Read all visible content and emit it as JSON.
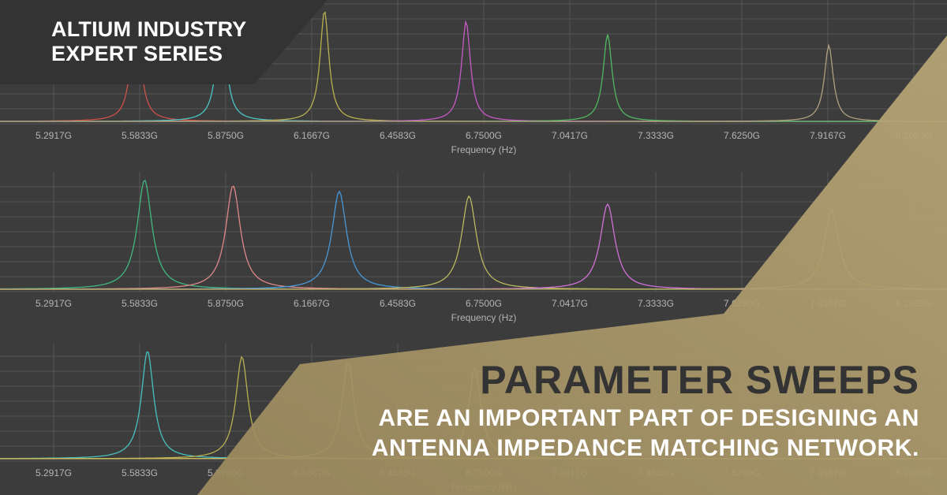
{
  "badge": {
    "line1": "ALTIUM INDUSTRY",
    "line2": "EXPERT SERIES",
    "color": "#333333"
  },
  "headline": {
    "title": "PARAMETER SWEEPS",
    "subtitle_line1": "ARE AN IMPORTANT PART OF DESIGNING AN",
    "subtitle_line2": "ANTENNA IMPEDANCE MATCHING NETWORK."
  },
  "accent_color": "#a8966a",
  "chart_data": [
    {
      "type": "line",
      "xlabel": "Frequency (Hz)",
      "ticks": [
        "5.2917G",
        "5.5833G",
        "5.8750G",
        "6.1667G",
        "6.4583G",
        "6.7500G",
        "7.0417G",
        "7.3333G",
        "7.6250G",
        "7.9167G",
        "8.2083G"
      ],
      "grid": true,
      "peaks": [
        {
          "freq_ghz": 5.57,
          "level": 1.0,
          "color": "#d0504a"
        },
        {
          "freq_ghz": 5.86,
          "level": 1.0,
          "color": "#4cc4c4"
        },
        {
          "freq_ghz": 6.21,
          "level": 0.93,
          "color": "#b8b050"
        },
        {
          "freq_ghz": 6.69,
          "level": 0.84,
          "color": "#c858c8"
        },
        {
          "freq_ghz": 7.17,
          "level": 0.73,
          "color": "#50b860"
        },
        {
          "freq_ghz": 7.92,
          "level": 0.64,
          "color": "#b0a080"
        }
      ]
    },
    {
      "type": "line",
      "xlabel": "Frequency (Hz)",
      "ticks": [
        "5.2917G",
        "5.5833G",
        "5.8750G",
        "6.1667G",
        "6.4583G",
        "6.7500G",
        "7.0417G",
        "7.3333G",
        "7.6250G",
        "7.9167G",
        "8.2083G"
      ],
      "grid": true,
      "peaks": [
        {
          "freq_ghz": 5.6,
          "level": 0.95,
          "color": "#40b880"
        },
        {
          "freq_ghz": 5.9,
          "level": 0.9,
          "color": "#e08888"
        },
        {
          "freq_ghz": 6.26,
          "level": 0.85,
          "color": "#4898d8"
        },
        {
          "freq_ghz": 6.7,
          "level": 0.81,
          "color": "#b8b860"
        },
        {
          "freq_ghz": 7.17,
          "level": 0.74,
          "color": "#d070d8"
        },
        {
          "freq_ghz": 7.93,
          "level": 0.69,
          "color": "#b8b060"
        }
      ]
    },
    {
      "type": "line",
      "xlabel": "Frequency (Hz)",
      "ticks": [
        "5.2917G",
        "5.5833G",
        "5.8750G",
        "6.1667G",
        "6.4583G",
        "6.7500G",
        "7.0417G",
        "7.3333G",
        "7.6250G",
        "7.9167G",
        "8.2083G"
      ],
      "grid": true,
      "peaks": [
        {
          "freq_ghz": 5.61,
          "level": 0.95,
          "color": "#48c0c0"
        },
        {
          "freq_ghz": 5.93,
          "level": 0.9,
          "color": "#b8b050"
        },
        {
          "freq_ghz": 6.29,
          "level": 0.85,
          "color": "#c8b860"
        },
        {
          "freq_ghz": 6.72,
          "level": 0.8,
          "color": "#c8b860"
        }
      ]
    }
  ]
}
